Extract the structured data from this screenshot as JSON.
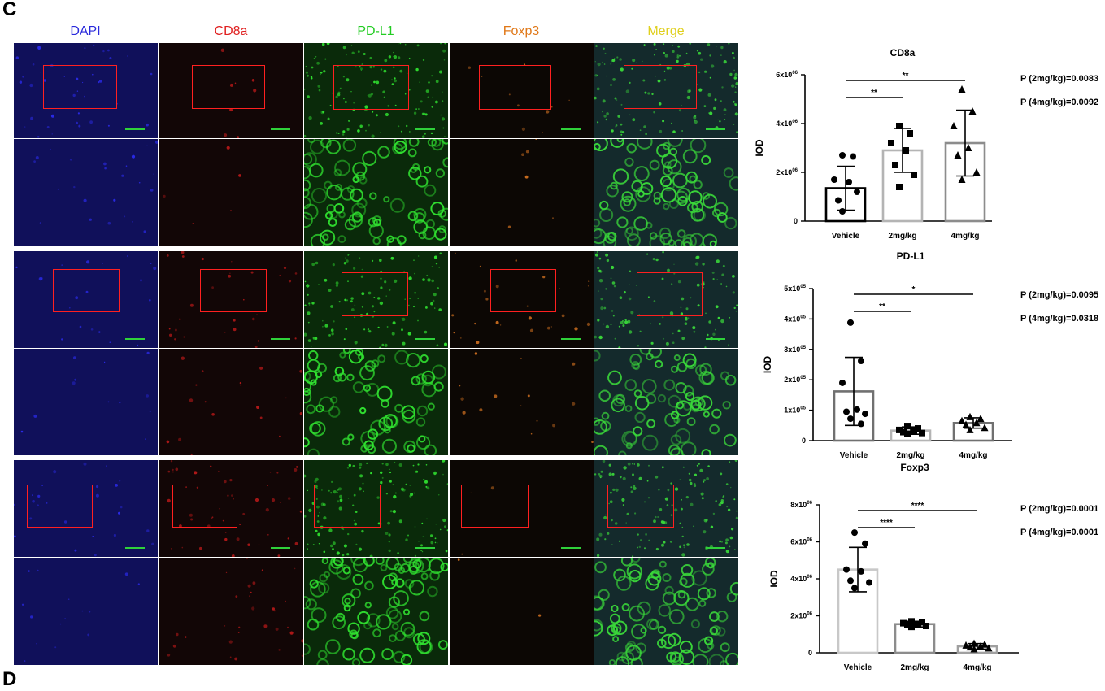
{
  "panel_labels": {
    "top": "C",
    "bottom": "D"
  },
  "image_panel": {
    "columns": [
      {
        "label": "DAPI",
        "color": "#2a2adc"
      },
      {
        "label": "CD8a",
        "color": "#e02020"
      },
      {
        "label": "PD-L1",
        "color": "#22cc22"
      },
      {
        "label": "Foxp3",
        "color": "#e07818"
      },
      {
        "label": "Merge",
        "color": "#e0d020"
      }
    ]
  },
  "chart_data": [
    {
      "type": "bar",
      "title": "CD8a",
      "ylabel": "IOD",
      "categories": [
        "Vehicle",
        "2mg/kg",
        "4mg/kg"
      ],
      "values": [
        1350000,
        2900000,
        3200000
      ],
      "errors": [
        900000,
        900000,
        1350000
      ],
      "ylim": [
        0,
        6000000
      ],
      "yticks": [
        {
          "value": 0,
          "label": "0",
          "sup": ""
        },
        {
          "value": 2000000,
          "label": "2x10",
          "sup": "06"
        },
        {
          "value": 4000000,
          "label": "4x10",
          "sup": "06"
        },
        {
          "value": 6000000,
          "label": "6x10",
          "sup": "06"
        }
      ],
      "points": [
        [
          2700000,
          2650000,
          1700000,
          1600000,
          850000,
          1200000,
          400000
        ],
        [
          3900000,
          3600000,
          3200000,
          2900000,
          2300000,
          1900000,
          1400000
        ],
        [
          5400000,
          4500000,
          3900000,
          3000000,
          2700000,
          2000000,
          1700000
        ]
      ],
      "bar_colors": [
        "#000000",
        "#b4b4b4",
        "#8c8c8c"
      ],
      "markers": [
        "circle",
        "square",
        "triangle"
      ],
      "significance": [
        {
          "from": 0,
          "to": 1,
          "label": "**"
        },
        {
          "from": 0,
          "to": 2,
          "label": "**"
        }
      ],
      "pvalues": [
        "P (2mg/kg)=0.0083",
        "P (4mg/kg)=0.0092"
      ]
    },
    {
      "type": "bar",
      "title": "PD-L1",
      "ylabel": "IOD",
      "categories": [
        "Vehicle",
        "2mg/kg",
        "4mg/kg"
      ],
      "values": [
        162000,
        33000,
        58000
      ],
      "errors": [
        112000,
        12000,
        17000
      ],
      "ylim": [
        0,
        500000
      ],
      "yticks": [
        {
          "value": 0,
          "label": "0",
          "sup": ""
        },
        {
          "value": 100000,
          "label": "1x10",
          "sup": "05"
        },
        {
          "value": 200000,
          "label": "2x10",
          "sup": "05"
        },
        {
          "value": 300000,
          "label": "3x10",
          "sup": "05"
        },
        {
          "value": 400000,
          "label": "4x10",
          "sup": "05"
        },
        {
          "value": 500000,
          "label": "5x10",
          "sup": "05"
        }
      ],
      "points": [
        [
          388000,
          262000,
          190000,
          102000,
          95000,
          88000,
          72000,
          55000
        ],
        [
          48000,
          40000,
          35000,
          30000,
          28000,
          25000,
          22000
        ],
        [
          78000,
          72000,
          65000,
          58000,
          52000,
          42000,
          35000
        ]
      ],
      "bar_colors": [
        "#707070",
        "#b4b4b4",
        "#707070"
      ],
      "markers": [
        "circle",
        "square",
        "triangle"
      ],
      "significance": [
        {
          "from": 0,
          "to": 1,
          "label": "**"
        },
        {
          "from": 0,
          "to": 2,
          "label": "*"
        }
      ],
      "pvalues": [
        "P (2mg/kg)=0.0095",
        "P (4mg/kg)=0.0318"
      ]
    },
    {
      "type": "bar",
      "title": "Foxp3",
      "ylabel": "IOD",
      "categories": [
        "Vehicle",
        "2mg/kg",
        "4mg/kg"
      ],
      "values": [
        4500000,
        1550000,
        350000
      ],
      "errors": [
        1200000,
        150000,
        150000
      ],
      "ylim": [
        0,
        8000000
      ],
      "yticks": [
        {
          "value": 0,
          "label": "0",
          "sup": ""
        },
        {
          "value": 2000000,
          "label": "2x10",
          "sup": "06"
        },
        {
          "value": 4000000,
          "label": "4x10",
          "sup": "06"
        },
        {
          "value": 6000000,
          "label": "6x10",
          "sup": "06"
        },
        {
          "value": 8000000,
          "label": "8x10",
          "sup": "06"
        }
      ],
      "points": [
        [
          6500000,
          5900000,
          4500000,
          4400000,
          3900000,
          3800000,
          3500000
        ],
        [
          1700000,
          1650000,
          1600000,
          1550000,
          1500000,
          1450000,
          1400000
        ],
        [
          500000,
          450000,
          400000,
          350000,
          300000,
          250000,
          200000
        ]
      ],
      "bar_colors": [
        "#c8c8c8",
        "#8c8c8c",
        "#a0a0a0"
      ],
      "markers": [
        "circle",
        "square",
        "triangle"
      ],
      "significance": [
        {
          "from": 0,
          "to": 1,
          "label": "****"
        },
        {
          "from": 0,
          "to": 2,
          "label": "****"
        }
      ],
      "pvalues": [
        "P (2mg/kg)=0.0001",
        "P (4mg/kg)=0.0001"
      ]
    }
  ]
}
